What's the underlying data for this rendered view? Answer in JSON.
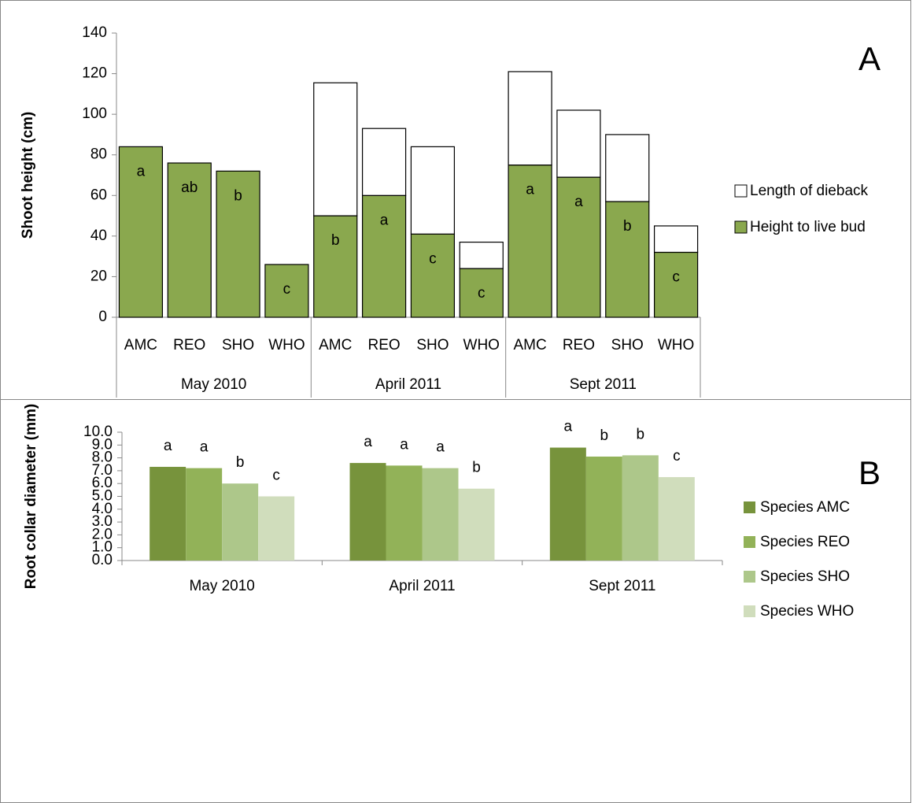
{
  "chart_data": [
    {
      "type": "stacked-bar",
      "panel": "A",
      "y_label": "Shoot height (cm)",
      "categories": [
        "AMC",
        "REO",
        "SHO",
        "WHO",
        "AMC",
        "REO",
        "SHO",
        "WHO",
        "AMC",
        "REO",
        "SHO",
        "WHO"
      ],
      "groups": [
        "May 2010",
        "April 2011",
        "Sept 2011"
      ],
      "series": [
        {
          "name": "Height to live bud",
          "color": "#8aa84e",
          "values": [
            84,
            76,
            72,
            26,
            50,
            60,
            41,
            24,
            75,
            69,
            57,
            32
          ],
          "letters": [
            "a",
            "ab",
            "b",
            "c",
            "b",
            "a",
            "c",
            "c",
            "a",
            "a",
            "b",
            "c"
          ]
        },
        {
          "name": "Length of dieback",
          "color": "#ffffff",
          "values": [
            0,
            0,
            0,
            0,
            65.5,
            33,
            43,
            13,
            46,
            33,
            33,
            13
          ]
        }
      ],
      "ylim": [
        0,
        140
      ],
      "yticks": [
        0,
        20,
        40,
        60,
        80,
        100,
        120,
        140
      ]
    },
    {
      "type": "bar",
      "panel": "B",
      "y_label": "Root collar diameter (mm)",
      "categories": [
        "May 2010",
        "April 2011",
        "Sept 2011"
      ],
      "series": [
        {
          "name": "Species AMC",
          "color": "#77933c",
          "values": [
            7.3,
            7.6,
            8.8
          ],
          "letters": [
            "a",
            "a",
            "a"
          ]
        },
        {
          "name": "Species REO",
          "color": "#92b258",
          "values": [
            7.2,
            7.4,
            8.1
          ],
          "letters": [
            "a",
            "a",
            "b"
          ]
        },
        {
          "name": "Species SHO",
          "color": "#adc78a",
          "values": [
            6.0,
            7.2,
            8.2
          ],
          "letters": [
            "b",
            "a",
            "b"
          ]
        },
        {
          "name": "Species WHO",
          "color": "#d0ddbc",
          "values": [
            5.0,
            5.6,
            6.5
          ],
          "letters": [
            "c",
            "b",
            "c"
          ]
        }
      ],
      "ylim": [
        0,
        10
      ],
      "yticks": [
        {
          "value": 0,
          "label": "0.0"
        },
        {
          "value": 1,
          "label": "1.0"
        },
        {
          "value": 2,
          "label": "2.0"
        },
        {
          "value": 3,
          "label": "3.0"
        },
        {
          "value": 4,
          "label": "4.0"
        },
        {
          "value": 5,
          "label": "5.0"
        },
        {
          "value": 6,
          "label": "6.0"
        },
        {
          "value": 7,
          "label": "7.0"
        },
        {
          "value": 8,
          "label": "8.0"
        },
        {
          "value": 9,
          "label": "9.0"
        },
        {
          "value": 10,
          "label": "10.0"
        }
      ]
    }
  ]
}
